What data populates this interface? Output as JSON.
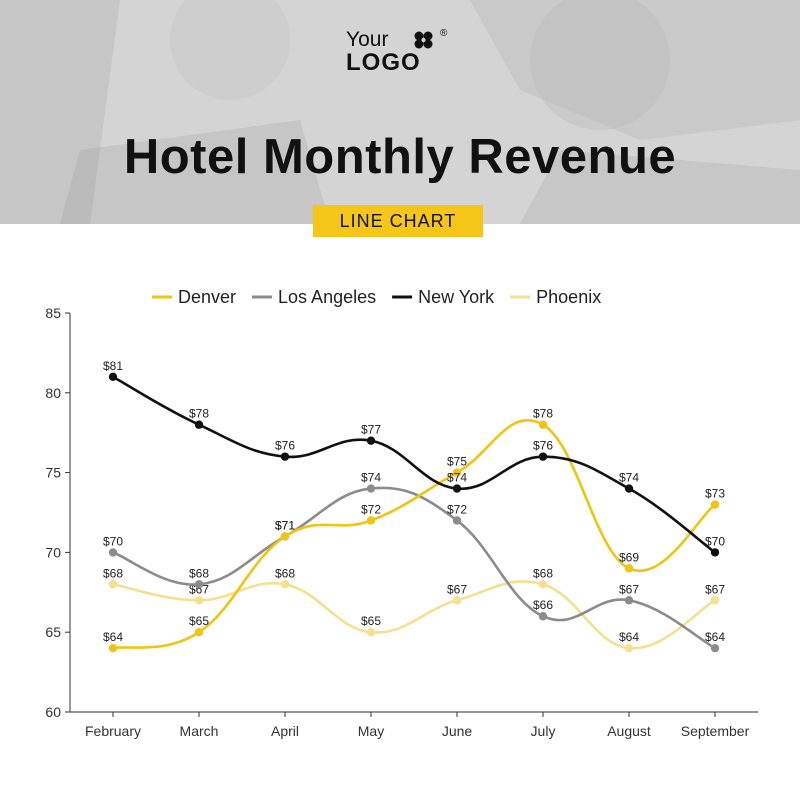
{
  "logo": {
    "line1": "Your",
    "line2": "LOGO",
    "registered": "®"
  },
  "title": "Hotel Monthly Revenue",
  "badge": "LINE CHART",
  "colors": {
    "Denver": "#f1c40f",
    "Los Angeles": "#8c8c8c",
    "New York": "#111111",
    "Phoenix": "#f6e08e",
    "badge": "#f5c518"
  },
  "chart_data": {
    "type": "line",
    "categories": [
      "February",
      "March",
      "April",
      "May",
      "June",
      "July",
      "August",
      "September"
    ],
    "ylim": [
      60,
      85
    ],
    "yticks": [
      60,
      65,
      70,
      75,
      80,
      85
    ],
    "legend_position": "top-center",
    "grid": false,
    "data_label_prefix": "$",
    "series": [
      {
        "name": "Denver",
        "values": [
          64,
          65,
          71,
          72,
          75,
          78,
          69,
          73
        ]
      },
      {
        "name": "Los Angeles",
        "values": [
          70,
          68,
          71,
          74,
          72,
          66,
          67,
          64
        ]
      },
      {
        "name": "New York",
        "values": [
          81,
          78,
          76,
          77,
          74,
          76,
          74,
          70
        ]
      },
      {
        "name": "Phoenix",
        "values": [
          68,
          67,
          68,
          65,
          67,
          68,
          64,
          67
        ]
      }
    ]
  }
}
